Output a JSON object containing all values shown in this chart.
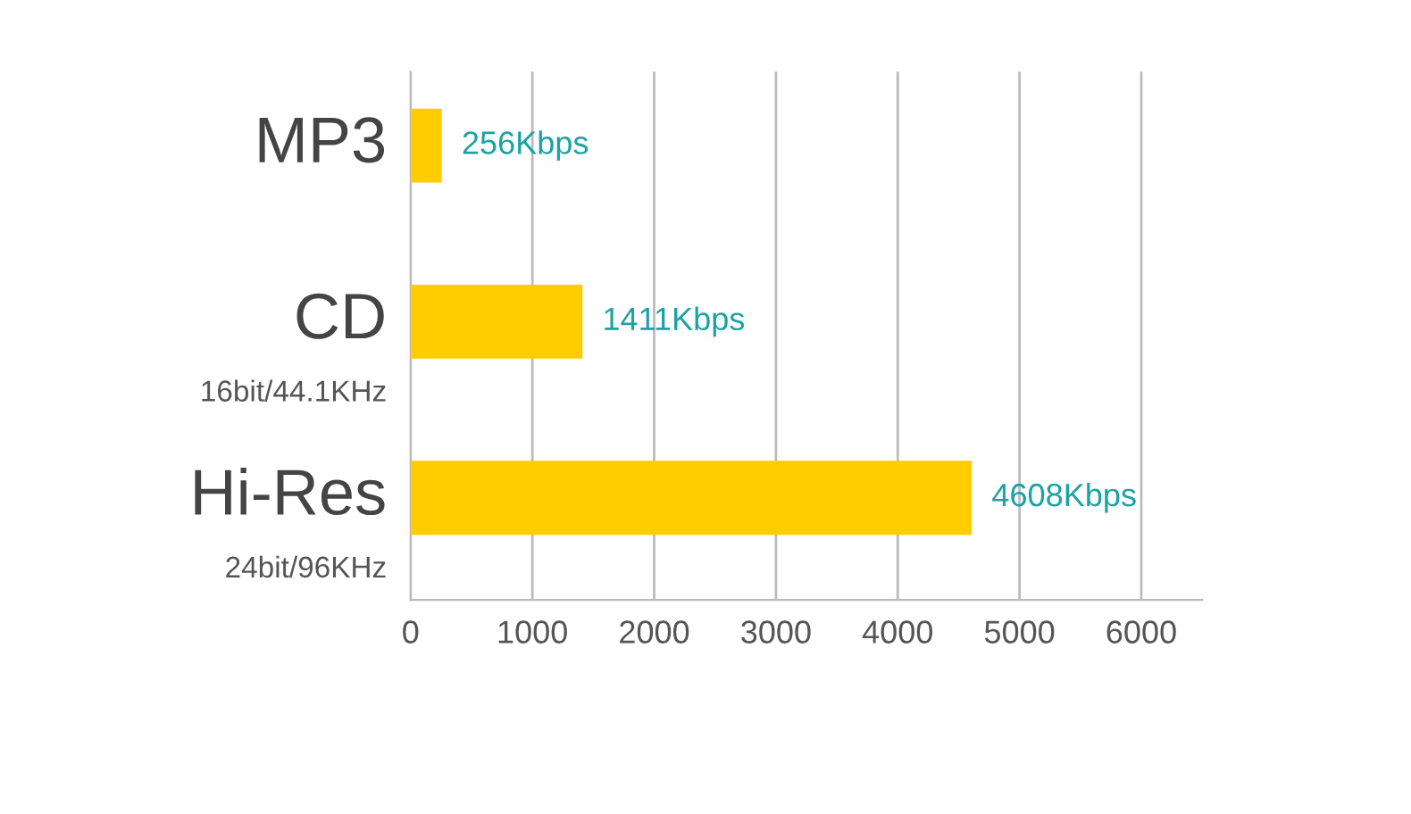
{
  "chart_data": {
    "type": "bar",
    "orientation": "horizontal",
    "categories": [
      "MP3",
      "CD\n16bit/44.1KHz",
      "Hi-Res\n24bit/96KHz"
    ],
    "values": [
      256,
      1411,
      4608
    ],
    "color": "#ffcc00",
    "value_labels": [
      "256Kbps",
      "1411Kbps",
      "4608Kbps"
    ],
    "xlim": [
      0,
      6500
    ],
    "xticks": [
      0,
      1000,
      2000,
      3000,
      4000,
      5000,
      6000
    ],
    "grid": "x",
    "legend": false
  }
}
